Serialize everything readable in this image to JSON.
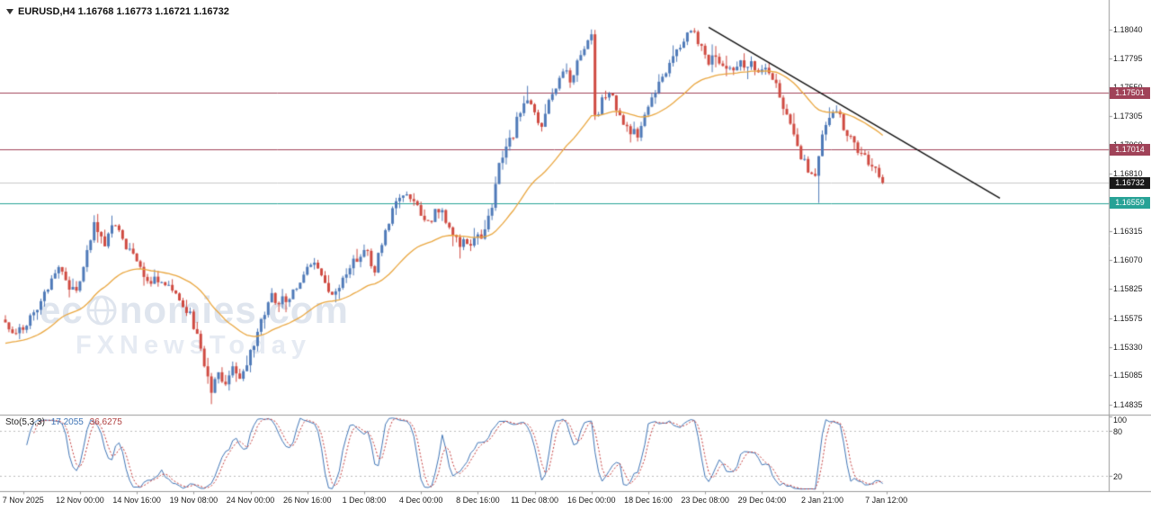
{
  "window": {
    "symbol_info": "EURUSD,H4 1.16768 1.16773 1.16721 1.16732"
  },
  "watermark": {
    "line1_prefix": "ec",
    "line1_suffix": "nomies.com",
    "line2": "FXNewsToday"
  },
  "indicator": {
    "name_label": "Sto(5,3,3)",
    "value1": "17.2055",
    "value2": "36.6275",
    "axis_labels": [
      {
        "v": 100,
        "label": "100"
      },
      {
        "v": 80,
        "label": "80"
      },
      {
        "v": 20,
        "label": "20"
      }
    ]
  },
  "levels": [
    {
      "label": "1.17501",
      "price": 1.17501,
      "color": "#a04258",
      "current": false
    },
    {
      "label": "1.17014",
      "price": 1.17014,
      "color": "#a04258",
      "current": false
    },
    {
      "label": "1.16559",
      "price": 1.16559,
      "color": "#27a296",
      "current": false
    },
    {
      "label": "1.16732",
      "price": 1.16732,
      "color": "#1a1a1a",
      "current": true
    }
  ],
  "axis": {
    "y_ticks": [
      {
        "label": "1.18040",
        "price": 1.1804
      },
      {
        "label": "1.17795",
        "price": 1.17795
      },
      {
        "label": "1.17550",
        "price": 1.1755
      },
      {
        "label": "1.17305",
        "price": 1.17305
      },
      {
        "label": "1.17060",
        "price": 1.1706
      },
      {
        "label": "1.16810",
        "price": 1.1681
      },
      {
        "label": "1.16565",
        "price": 1.16565
      },
      {
        "label": "1.16315",
        "price": 1.16315
      },
      {
        "label": "1.16070",
        "price": 1.1607
      },
      {
        "label": "1.15825",
        "price": 1.15825
      },
      {
        "label": "1.15575",
        "price": 1.15575
      },
      {
        "label": "1.15330",
        "price": 1.1533
      },
      {
        "label": "1.15085",
        "price": 1.15085
      },
      {
        "label": "1.14835",
        "price": 1.14835
      }
    ],
    "x_labels": [
      {
        "text": "7 Nov 2025",
        "i": 5
      },
      {
        "text": "12 Nov 00:00",
        "i": 21
      },
      {
        "text": "14 Nov 16:00",
        "i": 37
      },
      {
        "text": "19 Nov 08:00",
        "i": 53
      },
      {
        "text": "24 Nov 00:00",
        "i": 69
      },
      {
        "text": "26 Nov 16:00",
        "i": 85
      },
      {
        "text": "1 Dec 08:00",
        "i": 101
      },
      {
        "text": "4 Dec 00:00",
        "i": 117
      },
      {
        "text": "8 Dec 16:00",
        "i": 133
      },
      {
        "text": "11 Dec 08:00",
        "i": 149
      },
      {
        "text": "16 Dec 00:00",
        "i": 165
      },
      {
        "text": "18 Dec 16:00",
        "i": 181
      },
      {
        "text": "23 Dec 08:00",
        "i": 197
      },
      {
        "text": "29 Dec 04:00",
        "i": 213
      },
      {
        "text": "2 Jan 21:00",
        "i": 230
      },
      {
        "text": "7 Jan 12:00",
        "i": 248
      }
    ]
  },
  "chart_data": {
    "type": "candlestick",
    "symbol": "EURUSD",
    "timeframe": "H4",
    "ylim": [
      1.14835,
      1.1804
    ],
    "last_price": 1.16732,
    "candle_count": 248,
    "close_anchors": [
      [
        0,
        1.1556
      ],
      [
        3,
        1.1545
      ],
      [
        6,
        1.1552
      ],
      [
        9,
        1.1565
      ],
      [
        12,
        1.1585
      ],
      [
        14,
        1.16
      ],
      [
        17,
        1.159
      ],
      [
        20,
        1.1578
      ],
      [
        23,
        1.1615
      ],
      [
        25,
        1.1638
      ],
      [
        28,
        1.1622
      ],
      [
        31,
        1.164
      ],
      [
        34,
        1.1618
      ],
      [
        37,
        1.1605
      ],
      [
        40,
        1.1588
      ],
      [
        43,
        1.1592
      ],
      [
        46,
        1.1585
      ],
      [
        49,
        1.1575
      ],
      [
        52,
        1.1562
      ],
      [
        55,
        1.153
      ],
      [
        58,
        1.1495
      ],
      [
        60,
        1.1512
      ],
      [
        62,
        1.1502
      ],
      [
        64,
        1.1512
      ],
      [
        66,
        1.1508
      ],
      [
        69,
        1.1528
      ],
      [
        72,
        1.1555
      ],
      [
        75,
        1.1575
      ],
      [
        78,
        1.1572
      ],
      [
        81,
        1.158
      ],
      [
        84,
        1.1592
      ],
      [
        87,
        1.1608
      ],
      [
        90,
        1.159
      ],
      [
        92,
        1.1576
      ],
      [
        95,
        1.159
      ],
      [
        98,
        1.1605
      ],
      [
        101,
        1.1618
      ],
      [
        104,
        1.16
      ],
      [
        107,
        1.1635
      ],
      [
        110,
        1.1655
      ],
      [
        113,
        1.1662
      ],
      [
        116,
        1.165
      ],
      [
        119,
        1.164
      ],
      [
        122,
        1.1652
      ],
      [
        125,
        1.1638
      ],
      [
        128,
        1.162
      ],
      [
        131,
        1.1623
      ],
      [
        134,
        1.1628
      ],
      [
        137,
        1.1655
      ],
      [
        139,
        1.169
      ],
      [
        141,
        1.1705
      ],
      [
        143,
        1.1715
      ],
      [
        145,
        1.1737
      ],
      [
        147,
        1.1748
      ],
      [
        149,
        1.173
      ],
      [
        151,
        1.1725
      ],
      [
        153,
        1.174
      ],
      [
        155,
        1.1755
      ],
      [
        157,
        1.177
      ],
      [
        159,
        1.1762
      ],
      [
        161,
        1.1775
      ],
      [
        163,
        1.1788
      ],
      [
        165,
        1.1802
      ],
      [
        166,
        1.1728
      ],
      [
        168,
        1.1742
      ],
      [
        170,
        1.175
      ],
      [
        172,
        1.1738
      ],
      [
        174,
        1.1722
      ],
      [
        176,
        1.1718
      ],
      [
        178,
        1.1712
      ],
      [
        180,
        1.1728
      ],
      [
        182,
        1.1745
      ],
      [
        184,
        1.1758
      ],
      [
        186,
        1.177
      ],
      [
        188,
        1.1782
      ],
      [
        190,
        1.179
      ],
      [
        192,
        1.1798
      ],
      [
        194,
        1.18
      ],
      [
        196,
        1.1792
      ],
      [
        198,
        1.1778
      ],
      [
        200,
        1.1782
      ],
      [
        202,
        1.1775
      ],
      [
        204,
        1.177
      ],
      [
        206,
        1.1775
      ],
      [
        208,
        1.1772
      ],
      [
        210,
        1.1776
      ],
      [
        212,
        1.177
      ],
      [
        214,
        1.1772
      ],
      [
        216,
        1.1765
      ],
      [
        218,
        1.1748
      ],
      [
        220,
        1.173
      ],
      [
        222,
        1.1712
      ],
      [
        224,
        1.1695
      ],
      [
        226,
        1.1685
      ],
      [
        228,
        1.168
      ],
      [
        230,
        1.1712
      ],
      [
        232,
        1.173
      ],
      [
        234,
        1.1738
      ],
      [
        236,
        1.1722
      ],
      [
        238,
        1.171
      ],
      [
        240,
        1.17
      ],
      [
        242,
        1.1695
      ],
      [
        244,
        1.1688
      ],
      [
        246,
        1.1678
      ],
      [
        247,
        1.16732
      ]
    ],
    "extremes": [
      {
        "i": 58,
        "side": "low",
        "price": 1.1484
      },
      {
        "i": 147,
        "side": "high",
        "price": 1.1756
      },
      {
        "i": 165,
        "side": "high",
        "price": 1.18042
      },
      {
        "i": 194,
        "side": "high",
        "price": 1.1803
      },
      {
        "i": 229,
        "side": "low",
        "price": 1.1656
      }
    ],
    "ma": {
      "kind": "EMA",
      "period": 35,
      "seed": 1.1535,
      "color": "#e9a63f"
    },
    "trendline": {
      "from": {
        "i": 198,
        "price": 1.1806
      },
      "to": {
        "i": 280,
        "price": 1.166
      },
      "color": "#111111"
    },
    "stochastic": {
      "k": 5,
      "slowing": 3,
      "d": 3,
      "levels": [
        20,
        80
      ],
      "main_color": "#3f74b5",
      "signal_color": "#c23b3b"
    },
    "colors": {
      "up": "#4f7ab8",
      "down": "#cf4a41",
      "current_line": "#c8c8c8"
    }
  }
}
